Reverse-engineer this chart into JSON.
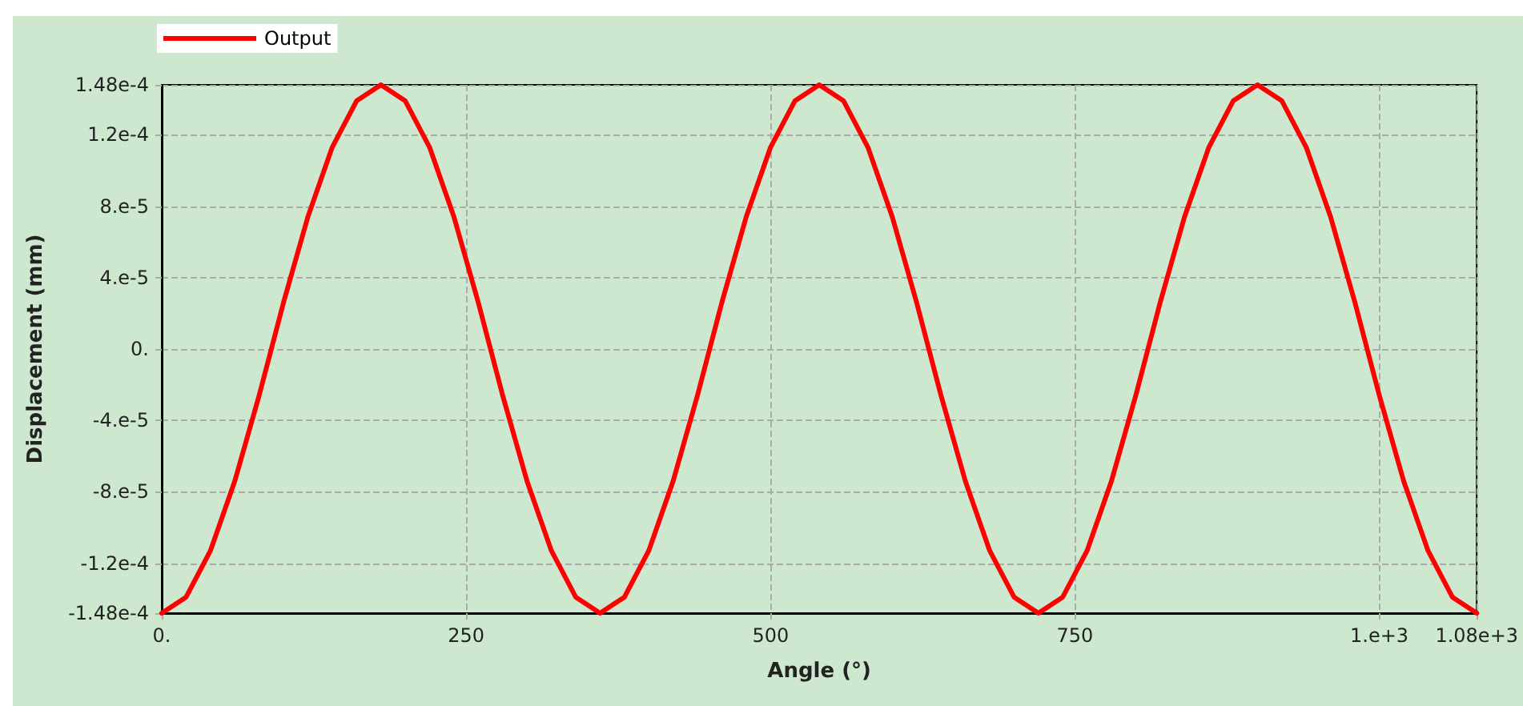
{
  "chart_data": {
    "type": "line",
    "xlabel": "Angle (°)",
    "ylabel": "Displacement (mm)",
    "x": [
      0,
      20,
      40,
      60,
      80,
      100,
      120,
      140,
      160,
      180,
      200,
      220,
      240,
      260,
      280,
      300,
      320,
      340,
      360,
      380,
      400,
      420,
      440,
      460,
      480,
      500,
      520,
      540,
      560,
      580,
      600,
      620,
      640,
      660,
      680,
      700,
      720,
      740,
      760,
      780,
      800,
      820,
      840,
      860,
      880,
      900,
      920,
      940,
      960,
      980,
      1000,
      1020,
      1040,
      1060,
      1080
    ],
    "series": [
      {
        "name": "Output",
        "color": "#ff0000",
        "values": [
          -0.000148,
          -0.000139,
          -0.000113,
          -7.4e-05,
          -2.6e-05,
          2.6e-05,
          7.4e-05,
          0.000113,
          0.000139,
          0.000148,
          0.000139,
          0.000113,
          7.4e-05,
          2.6e-05,
          -2.6e-05,
          -7.4e-05,
          -0.000113,
          -0.000139,
          -0.000148,
          -0.000139,
          -0.000113,
          -7.4e-05,
          -2.6e-05,
          2.6e-05,
          7.4e-05,
          0.000113,
          0.000139,
          0.000148,
          0.000139,
          0.000113,
          7.4e-05,
          2.6e-05,
          -2.6e-05,
          -7.4e-05,
          -0.000113,
          -0.000139,
          -0.000148,
          -0.000139,
          -0.000113,
          -7.4e-05,
          -2.6e-05,
          2.6e-05,
          7.4e-05,
          0.000113,
          0.000139,
          0.000148,
          0.000139,
          0.000113,
          7.4e-05,
          2.6e-05,
          -2.6e-05,
          -7.4e-05,
          -0.000113,
          -0.000139,
          -0.000148
        ]
      }
    ],
    "xlim": [
      0,
      1080
    ],
    "xticks": [
      {
        "value": 0,
        "label": "0."
      },
      250,
      500,
      750,
      {
        "value": 1000,
        "label": "1.e+3"
      },
      {
        "value": 1080,
        "label": "1.08e+3"
      }
    ],
    "ylim": [
      -0.000148,
      0.000148
    ],
    "yticks": [
      {
        "value": -0.000148,
        "label": "-1.48e-4"
      },
      {
        "value": -0.00012,
        "label": "-1.2e-4"
      },
      {
        "value": -8e-05,
        "label": "-8.e-5"
      },
      {
        "value": -4e-05,
        "label": "-4.e-5"
      },
      {
        "value": 0,
        "label": "0."
      },
      {
        "value": 4e-05,
        "label": "4.e-5"
      },
      {
        "value": 8e-05,
        "label": "8.e-5"
      },
      {
        "value": 0.00012,
        "label": "1.2e-4"
      },
      {
        "value": 0.000148,
        "label": "1.48e-4"
      }
    ],
    "grid": true,
    "legend": "top left",
    "marker": "none",
    "line_style": "solid"
  }
}
